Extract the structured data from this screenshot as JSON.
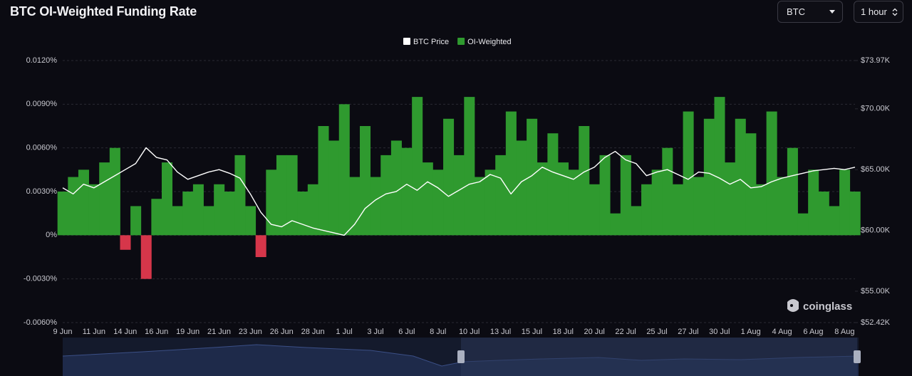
{
  "chart_data": {
    "type": "bar",
    "title": "BTC OI-Weighted Funding Rate",
    "categories": [
      "9 Jun",
      null,
      null,
      "11 Jun",
      null,
      null,
      "14 Jun",
      null,
      null,
      "16 Jun",
      null,
      null,
      "19 Jun",
      null,
      null,
      "21 Jun",
      null,
      null,
      "23 Jun",
      null,
      null,
      "26 Jun",
      null,
      null,
      "28 Jun",
      null,
      null,
      "1 Jul",
      null,
      null,
      "3 Jul",
      null,
      null,
      "6 Jul",
      null,
      null,
      "8 Jul",
      null,
      null,
      "10 Jul",
      null,
      null,
      "13 Jul",
      null,
      null,
      "15 Jul",
      null,
      null,
      "18 Jul",
      null,
      null,
      "20 Jul",
      null,
      null,
      "22 Jul",
      null,
      null,
      "25 Jul",
      null,
      null,
      "27 Jul",
      null,
      null,
      "30 Jul",
      null,
      null,
      "1 Aug",
      null,
      null,
      "4 Aug",
      null,
      null,
      "6 Aug",
      null,
      null,
      "8 Aug",
      null
    ],
    "series": [
      {
        "name": "BTC Price",
        "type": "line",
        "axis": "y2",
        "color": "#ffffff",
        "values": [
          63500,
          63000,
          63800,
          63500,
          64000,
          64500,
          65000,
          65500,
          66800,
          66000,
          65800,
          64800,
          64200,
          64500,
          64800,
          65000,
          64700,
          64300,
          63000,
          61500,
          60500,
          60300,
          60800,
          60500,
          60200,
          60000,
          59800,
          59600,
          60500,
          61800,
          62500,
          63000,
          63200,
          63800,
          63300,
          64000,
          63500,
          62800,
          63300,
          63800,
          64000,
          64600,
          64300,
          63000,
          64000,
          64500,
          65200,
          64800,
          64500,
          64200,
          64800,
          65200,
          66000,
          66500,
          65800,
          65500,
          64500,
          64800,
          65000,
          64600,
          64200,
          64800,
          64700,
          64300,
          63800,
          64200,
          63500,
          63600,
          64000,
          64300,
          64500,
          64700,
          64900,
          65000,
          65100,
          65000,
          65200
        ]
      },
      {
        "name": "OI-Weighted",
        "color": "#2f9a2f",
        "negative_color": "#d6364a",
        "values": [
          0.003,
          0.004,
          0.0045,
          0.0035,
          0.005,
          0.006,
          -0.001,
          0.002,
          -0.003,
          0.0025,
          0.005,
          0.002,
          0.003,
          0.0035,
          0.002,
          0.0035,
          0.003,
          0.0055,
          0.002,
          -0.0015,
          0.0045,
          0.0055,
          0.0055,
          0.003,
          0.0035,
          0.0075,
          0.0065,
          0.009,
          0.004,
          0.0075,
          0.004,
          0.0055,
          0.0065,
          0.006,
          0.0095,
          0.005,
          0.0045,
          0.008,
          0.0055,
          0.0095,
          0.004,
          0.0045,
          0.0055,
          0.0085,
          0.0065,
          0.008,
          0.005,
          0.007,
          0.005,
          0.0045,
          0.0075,
          0.0035,
          0.0055,
          0.0015,
          0.0055,
          0.002,
          0.0035,
          0.0045,
          0.006,
          0.0035,
          0.0085,
          0.004,
          0.008,
          0.0095,
          0.005,
          0.008,
          0.007,
          0.0035,
          0.0085,
          0.004,
          0.006,
          0.0015,
          0.0045,
          0.003,
          0.002,
          0.0045,
          0.003
        ]
      }
    ],
    "ylim": [
      -0.006,
      0.012
    ],
    "yticks": [
      {
        "value": 0.012,
        "label": "0.0120%"
      },
      {
        "value": 0.009,
        "label": "0.0090%"
      },
      {
        "value": 0.006,
        "label": "0.0060%"
      },
      {
        "value": 0.003,
        "label": "0.0030%"
      },
      {
        "value": 0,
        "label": "0%"
      },
      {
        "value": -0.003,
        "label": "-0.0030%"
      },
      {
        "value": -0.006,
        "label": "-0.0060%"
      }
    ],
    "y2lim": [
      52420,
      73970
    ],
    "y2ticks": [
      {
        "value": 73970,
        "label": "$73.97K"
      },
      {
        "value": 70000,
        "label": "$70.00K"
      },
      {
        "value": 65000,
        "label": "$65.00K"
      },
      {
        "value": 60000,
        "label": "$60.00K"
      },
      {
        "value": 55000,
        "label": "$55.00K"
      },
      {
        "value": 52420,
        "label": "$52.42K"
      }
    ],
    "grid": true,
    "legend": "top"
  },
  "controls": {
    "coin": "BTC",
    "interval": "1 hour"
  },
  "watermark": "coinglass"
}
